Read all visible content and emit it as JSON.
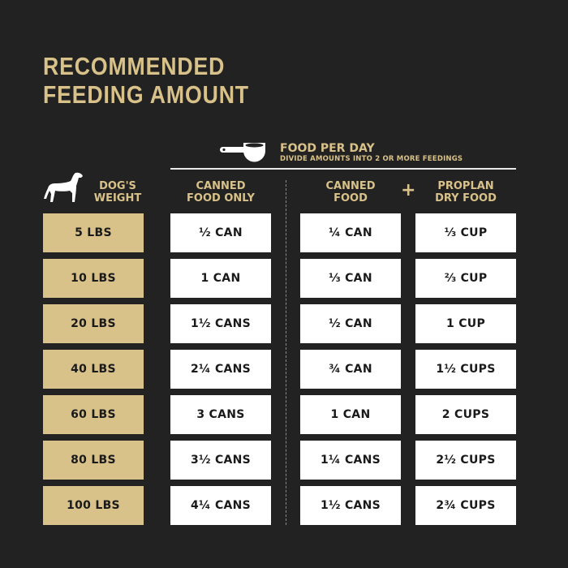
{
  "title": {
    "line1": "RECOMMENDED",
    "line2": "FEEDING AMOUNT"
  },
  "food_per_day": {
    "heading": "FOOD PER DAY",
    "subheading": "DIVIDE AMOUNTS INTO 2 OR MORE FEEDINGS",
    "icon": "measuring-scoop-icon"
  },
  "columns": {
    "weight": {
      "line1": "DOG'S",
      "line2": "WEIGHT",
      "icon": "dog-icon"
    },
    "canned_only": {
      "line1": "CANNED",
      "line2": "FOOD ONLY"
    },
    "canned": {
      "line1": "CANNED",
      "line2": "FOOD"
    },
    "plus": "+",
    "dry": {
      "line1": "PROPLAN",
      "line2": "DRY FOOD"
    }
  },
  "colors": {
    "background": "#222222",
    "gold": "#d9c28a",
    "cell": "#ffffff"
  },
  "rows": [
    {
      "weight": "5 LBS",
      "canned_only": "½ CAN",
      "canned": "¼ CAN",
      "dry": "⅓ CUP"
    },
    {
      "weight": "10 LBS",
      "canned_only": "1 CAN",
      "canned": "⅓ CAN",
      "dry": "⅔ CUP"
    },
    {
      "weight": "20 LBS",
      "canned_only": "1½ CANS",
      "canned": "½ CAN",
      "dry": "1 CUP"
    },
    {
      "weight": "40 LBS",
      "canned_only": "2¼ CANS",
      "canned": "¾ CAN",
      "dry": "1½ CUPS"
    },
    {
      "weight": "60 LBS",
      "canned_only": "3 CANS",
      "canned": "1 CAN",
      "dry": "2 CUPS"
    },
    {
      "weight": "80 LBS",
      "canned_only": "3½ CANS",
      "canned": "1¼ CANS",
      "dry": "2½ CUPS"
    },
    {
      "weight": "100 LBS",
      "canned_only": "4¼ CANS",
      "canned": "1½ CANS",
      "dry": "2¾ CUPS"
    }
  ]
}
